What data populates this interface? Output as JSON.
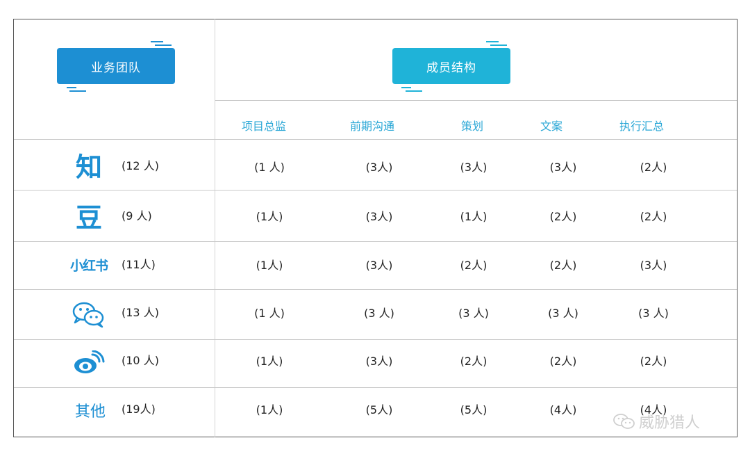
{
  "header": {
    "team_label": "业务团队",
    "structure_label": "成员结构"
  },
  "columns": [
    "项目总监",
    "前期沟通",
    "策划",
    "文案",
    "执行汇总"
  ],
  "rows": [
    {
      "team": "知",
      "icon": "zhihu-icon",
      "count": "(12 人)",
      "values": [
        "(1 人)",
        "(3人)",
        "(3人)",
        "(3人)",
        "(2人)"
      ]
    },
    {
      "team": "豆",
      "icon": "douban-icon",
      "count": "(9 人)",
      "values": [
        "(1人)",
        "(3人)",
        "(1人)",
        "(2人)",
        "(2人)"
      ]
    },
    {
      "team": "小红书",
      "icon": "xiaohongshu-icon",
      "count": "(11人)",
      "values": [
        "(1人)",
        "(3人)",
        "(2人)",
        "(2人)",
        "(3人)"
      ]
    },
    {
      "team": "",
      "icon": "wechat-icon",
      "count": "(13 人)",
      "values": [
        "(1 人)",
        "(3 人)",
        "(3 人)",
        "(3 人)",
        "(3 人)"
      ]
    },
    {
      "team": "",
      "icon": "weibo-icon",
      "count": "(10 人)",
      "values": [
        "(1人)",
        "(3人)",
        "(2人)",
        "(2人)",
        "(2人)"
      ]
    },
    {
      "team": "其他",
      "icon": "other-label",
      "count": "(19人)",
      "values": [
        "(1人)",
        "(5人)",
        "(5人)",
        "(4人)",
        "(4人)"
      ]
    }
  ],
  "watermark": "威胁猎人",
  "colors": {
    "accent_dark": "#1d8fd3",
    "accent_light": "#1fb3d8",
    "header_text": "#2aa7d6"
  }
}
